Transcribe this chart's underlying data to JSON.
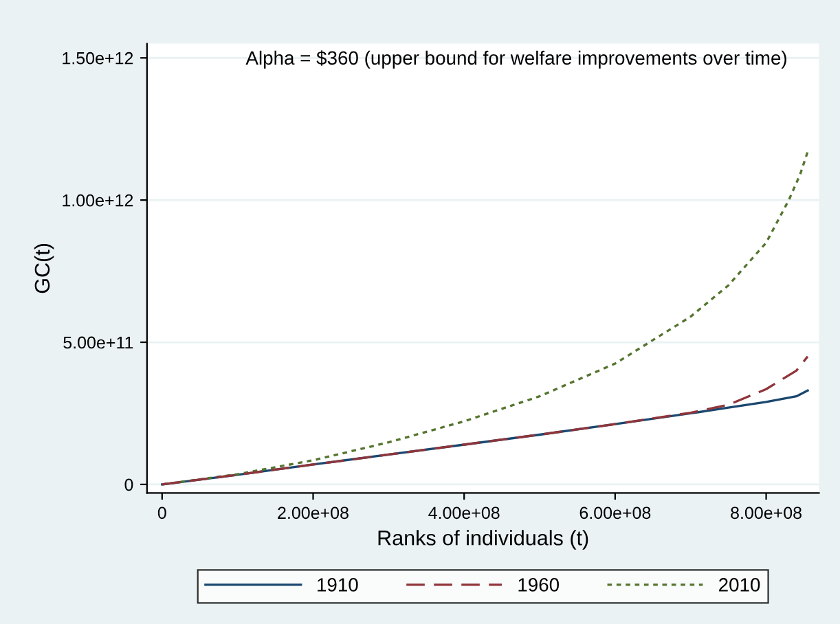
{
  "chart_data": {
    "type": "line",
    "xlabel": "Ranks of individuals (t)",
    "ylabel": "GC(t)",
    "annotations": [
      "Alpha = $360 (upper bound for welfare improvements over time)"
    ],
    "xlim": [
      -20000000,
      870000000
    ],
    "ylim": [
      -30000000000,
      1550000000000
    ],
    "xticks": [
      0,
      {
        "value": 200000000,
        "label": "2.00e+08"
      },
      {
        "value": 400000000,
        "label": "4.00e+08"
      },
      {
        "value": 600000000,
        "label": "6.00e+08"
      },
      {
        "value": 800000000,
        "label": "8.00e+08"
      }
    ],
    "yticks": [
      0,
      {
        "value": 500000000000,
        "label": "5.00e+11"
      },
      {
        "value": 1000000000000,
        "label": "1.00e+12"
      },
      {
        "value": 1500000000000,
        "label": "1.50e+12"
      }
    ],
    "grid": "y",
    "legend": "bottom",
    "series": [
      {
        "name": "1910",
        "color": "#1a476f",
        "line_style": "solid",
        "x": [
          0,
          100000000,
          200000000,
          300000000,
          400000000,
          500000000,
          600000000,
          700000000,
          750000000,
          800000000,
          840000000,
          855000000
        ],
        "values": [
          0,
          34000000000,
          70000000000,
          105000000000,
          140000000000,
          175000000000,
          212000000000,
          250000000000,
          270000000000,
          290000000000,
          310000000000,
          330000000000
        ]
      },
      {
        "name": "1960",
        "color": "#90353b",
        "line_style": "dashed",
        "x": [
          0,
          100000000,
          200000000,
          300000000,
          400000000,
          500000000,
          600000000,
          700000000,
          750000000,
          800000000,
          840000000,
          855000000
        ],
        "values": [
          0,
          34000000000,
          70000000000,
          105000000000,
          140000000000,
          175000000000,
          212000000000,
          252000000000,
          280000000000,
          335000000000,
          400000000000,
          450000000000
        ]
      },
      {
        "name": "2010",
        "color": "#55752f",
        "line_style": "dotted",
        "x": [
          0,
          100000000,
          200000000,
          300000000,
          400000000,
          500000000,
          600000000,
          700000000,
          750000000,
          800000000,
          830000000,
          845000000,
          855000000
        ],
        "values": [
          0,
          36000000000,
          85000000000,
          148000000000,
          222000000000,
          310000000000,
          425000000000,
          590000000000,
          700000000000,
          850000000000,
          1000000000000,
          1090000000000,
          1170000000000
        ]
      }
    ]
  }
}
